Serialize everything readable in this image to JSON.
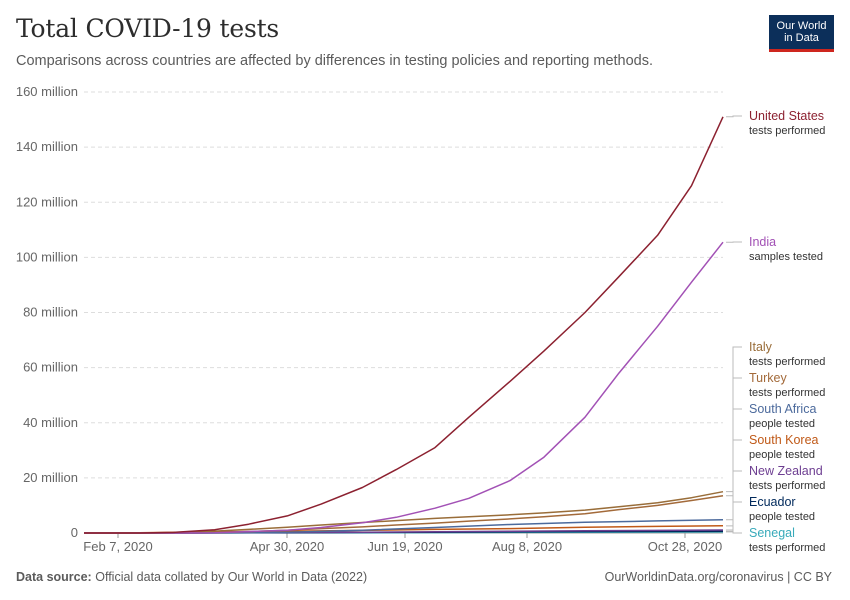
{
  "header": {
    "title": "Total COVID-19 tests",
    "subtitle": "Comparisons across countries are affected by differences in testing policies and reporting methods."
  },
  "logo": {
    "line1": "Our World",
    "line2": "in Data"
  },
  "footer": {
    "source_label": "Data source:",
    "source_text": "Official data collated by Our World in Data (2022)",
    "link": "OurWorldinData.org/coronavirus | CC BY"
  },
  "chart_data": {
    "type": "line",
    "title": "Total COVID-19 tests",
    "x_ticks": [
      "Feb 7, 2020",
      "Apr 30, 2020",
      "Jun 19, 2020",
      "Aug 8, 2020",
      "Oct 28, 2020"
    ],
    "y_ticks": [
      "0",
      "20 million",
      "40 million",
      "60 million",
      "80 million",
      "100 million",
      "120 million",
      "140 million",
      "160 million"
    ],
    "ylim": [
      0,
      160000000
    ],
    "xlim": [
      "2020-02-07",
      "2020-10-28"
    ],
    "grid": true,
    "legend_position": "right",
    "series": [
      {
        "name": "United States",
        "metric": "tests performed",
        "color": "#8c2130",
        "points": [
          [
            "2020-02-07",
            0
          ],
          [
            "2020-03-01",
            0
          ],
          [
            "2020-03-15",
            0.2
          ],
          [
            "2020-04-01",
            1.2
          ],
          [
            "2020-04-15",
            3.2
          ],
          [
            "2020-05-01",
            6.2
          ],
          [
            "2020-05-15",
            10.5
          ],
          [
            "2020-06-01",
            16.5
          ],
          [
            "2020-06-15",
            23
          ],
          [
            "2020-07-01",
            31
          ],
          [
            "2020-07-15",
            42
          ],
          [
            "2020-08-01",
            55
          ],
          [
            "2020-08-15",
            66
          ],
          [
            "2020-09-01",
            80
          ],
          [
            "2020-09-15",
            93
          ],
          [
            "2020-10-01",
            108
          ],
          [
            "2020-10-15",
            126
          ],
          [
            "2020-10-28",
            151
          ]
        ]
      },
      {
        "name": "India",
        "metric": "samples tested",
        "color": "#a251b5",
        "points": [
          [
            "2020-02-07",
            0
          ],
          [
            "2020-03-15",
            0
          ],
          [
            "2020-04-01",
            0.1
          ],
          [
            "2020-05-01",
            1
          ],
          [
            "2020-05-15",
            2
          ],
          [
            "2020-06-01",
            3.7
          ],
          [
            "2020-06-15",
            5.7
          ],
          [
            "2020-07-01",
            9
          ],
          [
            "2020-07-15",
            12.6
          ],
          [
            "2020-08-01",
            19
          ],
          [
            "2020-08-15",
            27.5
          ],
          [
            "2020-09-01",
            42
          ],
          [
            "2020-09-15",
            58
          ],
          [
            "2020-10-01",
            75
          ],
          [
            "2020-10-15",
            91
          ],
          [
            "2020-10-28",
            105.5
          ]
        ]
      },
      {
        "name": "Italy",
        "metric": "tests performed",
        "color": "#996d39",
        "points": [
          [
            "2020-02-07",
            0
          ],
          [
            "2020-02-25",
            0
          ],
          [
            "2020-03-15",
            0.15
          ],
          [
            "2020-04-01",
            0.7
          ],
          [
            "2020-04-15",
            1.3
          ],
          [
            "2020-05-01",
            2.1
          ],
          [
            "2020-05-15",
            2.9
          ],
          [
            "2020-06-01",
            3.8
          ],
          [
            "2020-06-15",
            4.5
          ],
          [
            "2020-07-01",
            5.3
          ],
          [
            "2020-07-15",
            5.9
          ],
          [
            "2020-08-01",
            6.6
          ],
          [
            "2020-08-15",
            7.3
          ],
          [
            "2020-09-01",
            8.3
          ],
          [
            "2020-09-15",
            9.5
          ],
          [
            "2020-10-01",
            11
          ],
          [
            "2020-10-15",
            12.8
          ],
          [
            "2020-10-28",
            15
          ]
        ]
      },
      {
        "name": "Turkey",
        "metric": "tests performed",
        "color": "#a36a3a",
        "points": [
          [
            "2020-02-07",
            0
          ],
          [
            "2020-03-15",
            0
          ],
          [
            "2020-04-01",
            0.1
          ],
          [
            "2020-04-15",
            0.5
          ],
          [
            "2020-05-01",
            1
          ],
          [
            "2020-05-15",
            1.6
          ],
          [
            "2020-06-01",
            2.2
          ],
          [
            "2020-06-15",
            2.9
          ],
          [
            "2020-07-01",
            3.6
          ],
          [
            "2020-07-15",
            4.3
          ],
          [
            "2020-08-01",
            5.1
          ],
          [
            "2020-08-15",
            5.9
          ],
          [
            "2020-09-01",
            7
          ],
          [
            "2020-09-15",
            8.5
          ],
          [
            "2020-10-01",
            10
          ],
          [
            "2020-10-15",
            11.8
          ],
          [
            "2020-10-28",
            13.5
          ]
        ]
      },
      {
        "name": "South Africa",
        "metric": "people tested",
        "color": "#4c6a9c",
        "points": [
          [
            "2020-02-07",
            0
          ],
          [
            "2020-03-15",
            0
          ],
          [
            "2020-04-01",
            0.05
          ],
          [
            "2020-05-01",
            0.25
          ],
          [
            "2020-06-01",
            1
          ],
          [
            "2020-07-01",
            2
          ],
          [
            "2020-08-01",
            3.1
          ],
          [
            "2020-09-01",
            3.9
          ],
          [
            "2020-10-01",
            4.4
          ],
          [
            "2020-10-28",
            4.8
          ]
        ]
      },
      {
        "name": "South Korea",
        "metric": "people tested",
        "color": "#c05917",
        "points": [
          [
            "2020-02-07",
            0
          ],
          [
            "2020-03-01",
            0.1
          ],
          [
            "2020-04-01",
            0.45
          ],
          [
            "2020-05-01",
            0.65
          ],
          [
            "2020-06-01",
            0.95
          ],
          [
            "2020-07-01",
            1.3
          ],
          [
            "2020-08-01",
            1.6
          ],
          [
            "2020-09-01",
            2.1
          ],
          [
            "2020-10-01",
            2.4
          ],
          [
            "2020-10-28",
            2.6
          ]
        ]
      },
      {
        "name": "New Zealand",
        "metric": "tests performed",
        "color": "#6d3e91",
        "points": [
          [
            "2020-02-07",
            0
          ],
          [
            "2020-03-15",
            0
          ],
          [
            "2020-04-15",
            0.1
          ],
          [
            "2020-06-01",
            0.3
          ],
          [
            "2020-08-01",
            0.6
          ],
          [
            "2020-09-01",
            0.85
          ],
          [
            "2020-10-28",
            1.1
          ]
        ]
      },
      {
        "name": "Ecuador",
        "metric": "people tested",
        "color": "#00295b",
        "points": [
          [
            "2020-02-07",
            0
          ],
          [
            "2020-03-15",
            0
          ],
          [
            "2020-05-01",
            0.1
          ],
          [
            "2020-07-01",
            0.3
          ],
          [
            "2020-09-01",
            0.5
          ],
          [
            "2020-10-28",
            0.6
          ]
        ]
      },
      {
        "name": "Senegal",
        "metric": "tests performed",
        "color": "#38aaba",
        "points": [
          [
            "2020-02-07",
            0
          ],
          [
            "2020-03-15",
            0
          ],
          [
            "2020-05-01",
            0.05
          ],
          [
            "2020-07-01",
            0.15
          ],
          [
            "2020-09-01",
            0.3
          ],
          [
            "2020-10-28",
            0.4
          ]
        ]
      }
    ]
  }
}
